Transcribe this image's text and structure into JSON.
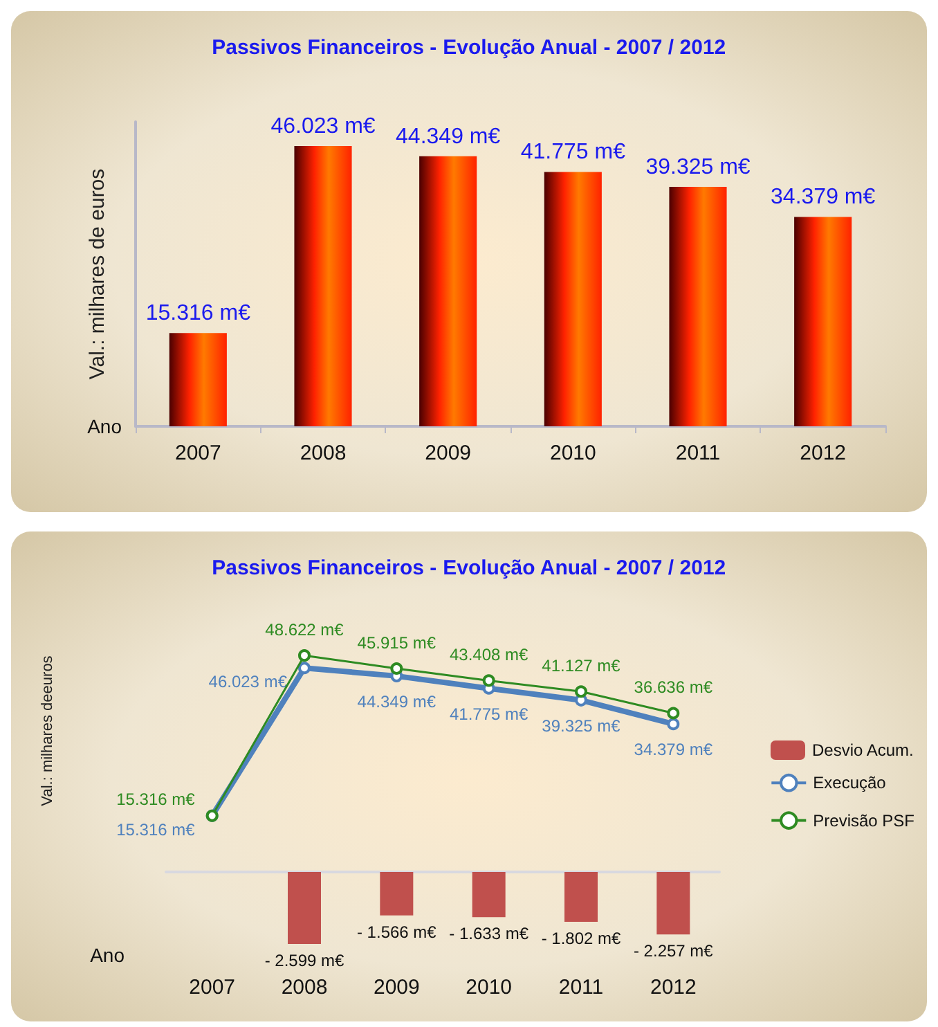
{
  "chart_data": [
    {
      "type": "bar",
      "title": "Passivos Financeiros - Evolução Anual - 2007 / 2012",
      "xlabel": "Ano",
      "ylabel": "Val.: milhares de euros",
      "categories": [
        "2007",
        "2008",
        "2009",
        "2010",
        "2011",
        "2012"
      ],
      "values": [
        15.316,
        46.023,
        44.349,
        41.775,
        39.325,
        34.379
      ],
      "value_labels": [
        "15.316 m€",
        "46.023 m€",
        "44.349 m€",
        "41.775 m€",
        "39.325 m€",
        "34.379 m€"
      ],
      "color": "#ff2200",
      "tick_labels": "x"
    },
    {
      "type": "line",
      "title": "Passivos Financeiros - Evolução Anual - 2007 / 2012",
      "ylabel": "Val.: milhares deeuros",
      "categories": [
        "2007",
        "2008",
        "2009",
        "2010",
        "2011",
        "2012"
      ],
      "series": [
        {
          "name": "Execução",
          "color": "#4f81bd",
          "values": [
            15.316,
            46.023,
            44.349,
            41.775,
            39.325,
            34.379
          ],
          "value_labels": [
            "15.316 m€",
            "46.023 m€",
            "44.349 m€",
            "41.775 m€",
            "39.325 m€",
            "34.379 m€"
          ]
        },
        {
          "name": "Previsão PSF",
          "color": "#2e8b22",
          "values": [
            15.316,
            48.622,
            45.915,
            43.408,
            41.127,
            36.636
          ],
          "value_labels": [
            "15.316 m€",
            "48.622 m€",
            "45.915 m€",
            "43.408 m€",
            "41.127 m€",
            "36.636 m€"
          ]
        }
      ],
      "legend": "right",
      "marker": "circle",
      "tick_labels": false
    },
    {
      "type": "bar",
      "xlabel": "Ano",
      "categories": [
        "2007",
        "2008",
        "2009",
        "2010",
        "2011",
        "2012"
      ],
      "series": [
        {
          "name": "Desvio Acum.",
          "color": "#c0504d",
          "values": [
            null,
            -2.599,
            -1.566,
            -1.633,
            -1.802,
            -2.257
          ],
          "value_labels": [
            null,
            "- 2.599 m€",
            "- 1.566 m€",
            "- 1.633 m€",
            "- 1.802 m€",
            "- 2.257 m€"
          ]
        }
      ],
      "legend": "right",
      "tick_labels": "x"
    }
  ]
}
